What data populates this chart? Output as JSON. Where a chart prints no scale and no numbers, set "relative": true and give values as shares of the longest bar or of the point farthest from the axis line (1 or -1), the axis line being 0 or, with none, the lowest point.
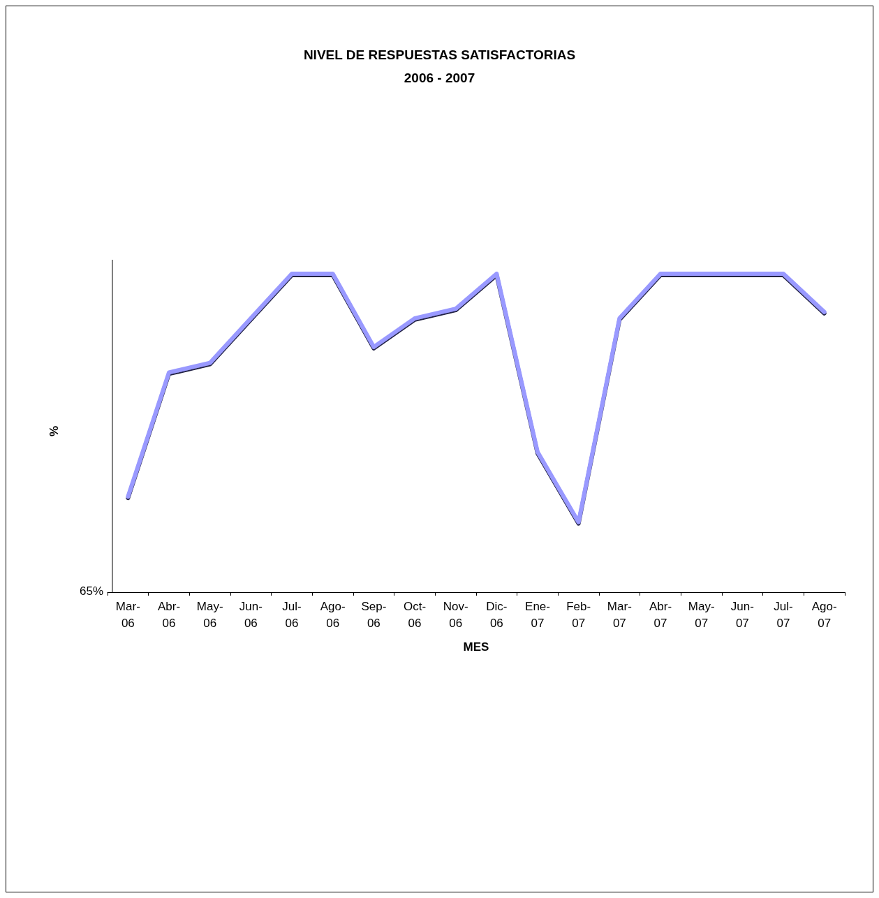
{
  "chart_data": {
    "type": "line",
    "title": "NIVEL DE RESPUESTAS SATISFACTORIAS",
    "subtitle": "2006 - 2007",
    "xlabel": "MES",
    "ylabel": "%",
    "categories": [
      "Mar-06",
      "Abr-06",
      "May-06",
      "Jun-06",
      "Jul-06",
      "Ago-06",
      "Sep-06",
      "Oct-06",
      "Nov-06",
      "Dic-06",
      "Ene-07",
      "Feb-07",
      "Mar-07",
      "Abr-07",
      "May-07",
      "Jun-07",
      "Jul-07",
      "Ago-07"
    ],
    "series": [
      {
        "color": "#9999ff",
        "values": [
          0.3,
          0.69,
          0.72,
          0.86,
          1,
          1,
          0.77,
          0.86,
          0.89,
          1,
          0.44,
          0.22,
          0.86,
          1,
          1,
          1,
          1,
          0.88
        ]
      }
    ],
    "relative": true,
    "annotations": [
      "65%"
    ],
    "grid": false,
    "marker": "none",
    "line_style": "solid"
  }
}
